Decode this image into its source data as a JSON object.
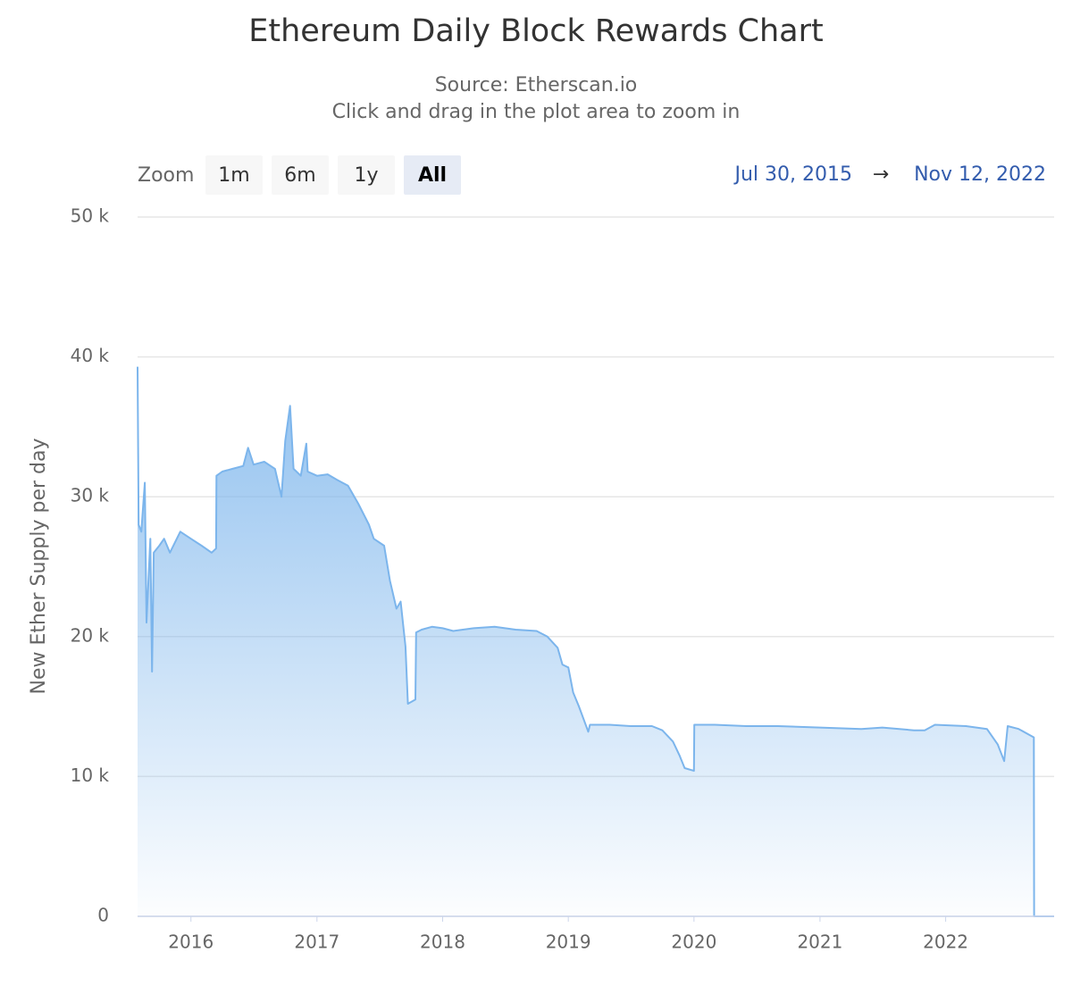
{
  "chart_data": {
    "type": "area",
    "title": "Ethereum Daily Block Rewards Chart",
    "subtitle": [
      "Source: Etherscan.io",
      "Click and drag in the plot area to zoom in"
    ],
    "range_selector": {
      "label": "Zoom",
      "buttons": [
        "1m",
        "6m",
        "1y",
        "All"
      ],
      "selected": 3,
      "from": "Jul 30, 2015",
      "arrow": "→",
      "to": "Nov 12, 2022"
    },
    "y_axis_title": "New Ether Supply per day",
    "color": "#7cb5ec",
    "grid": true,
    "xlim": [
      "2015-07-30",
      "2022-11-12"
    ],
    "xticks": [
      {
        "value": "2016-01-01",
        "label": "2016"
      },
      {
        "value": "2017-01-01",
        "label": "2017"
      },
      {
        "value": "2018-01-01",
        "label": "2018"
      },
      {
        "value": "2019-01-01",
        "label": "2019"
      },
      {
        "value": "2020-01-01",
        "label": "2020"
      },
      {
        "value": "2021-01-01",
        "label": "2021"
      },
      {
        "value": "2022-01-01",
        "label": "2022"
      }
    ],
    "ylim": [
      0,
      50000
    ],
    "yticks": [
      {
        "value": 0,
        "label": "0"
      },
      {
        "value": 10000,
        "label": "10 k"
      },
      {
        "value": 20000,
        "label": "20 k"
      },
      {
        "value": 30000,
        "label": "30 k"
      },
      {
        "value": 40000,
        "label": "40 k"
      },
      {
        "value": 50000,
        "label": "50 k"
      }
    ],
    "x": [
      "2015-07-30",
      "2015-08-02",
      "2015-08-10",
      "2015-08-20",
      "2015-08-25",
      "2015-09-05",
      "2015-09-10",
      "2015-09-15",
      "2015-10-01",
      "2015-10-15",
      "2015-11-01",
      "2015-12-01",
      "2016-01-01",
      "2016-02-01",
      "2016-03-01",
      "2016-03-14",
      "2016-03-15",
      "2016-04-01",
      "2016-05-01",
      "2016-06-01",
      "2016-06-15",
      "2016-07-01",
      "2016-08-01",
      "2016-09-01",
      "2016-09-20",
      "2016-10-01",
      "2016-10-15",
      "2016-10-25",
      "2016-11-15",
      "2016-12-01",
      "2016-12-05",
      "2017-01-01",
      "2017-02-01",
      "2017-03-01",
      "2017-04-01",
      "2017-05-01",
      "2017-06-01",
      "2017-06-15",
      "2017-07-15",
      "2017-08-01",
      "2017-08-20",
      "2017-09-01",
      "2017-09-15",
      "2017-09-22",
      "2017-10-14",
      "2017-10-16",
      "2017-11-01",
      "2017-12-01",
      "2018-01-01",
      "2018-02-01",
      "2018-04-01",
      "2018-06-01",
      "2018-08-01",
      "2018-10-01",
      "2018-11-01",
      "2018-12-01",
      "2018-12-15",
      "2019-01-01",
      "2019-01-15",
      "2019-02-01",
      "2019-02-28",
      "2019-03-05",
      "2019-05-01",
      "2019-07-01",
      "2019-09-01",
      "2019-10-01",
      "2019-11-01",
      "2019-11-20",
      "2019-12-05",
      "2020-01-01",
      "2020-01-02",
      "2020-03-01",
      "2020-06-01",
      "2020-09-01",
      "2021-01-01",
      "2021-05-01",
      "2021-07-01",
      "2021-10-01",
      "2021-11-01",
      "2021-12-01",
      "2022-03-01",
      "2022-05-01",
      "2022-06-01",
      "2022-06-20",
      "2022-06-30",
      "2022-08-01",
      "2022-09-14",
      "2022-09-15",
      "2022-11-12"
    ],
    "values": [
      39300,
      28000,
      27500,
      31000,
      21000,
      27000,
      17500,
      26000,
      26500,
      27000,
      26000,
      27500,
      27000,
      26500,
      26000,
      26300,
      31500,
      31800,
      32000,
      32200,
      33500,
      32300,
      32500,
      32000,
      30000,
      34000,
      36500,
      32000,
      31500,
      33800,
      31800,
      31500,
      31600,
      31200,
      30800,
      29500,
      28000,
      27000,
      26500,
      24000,
      22000,
      22500,
      19300,
      15200,
      15500,
      20300,
      20500,
      20700,
      20600,
      20400,
      20600,
      20700,
      20500,
      20400,
      20000,
      19200,
      18000,
      17800,
      16000,
      15000,
      13200,
      13700,
      13700,
      13600,
      13600,
      13300,
      12500,
      11500,
      10600,
      10400,
      13700,
      13700,
      13600,
      13600,
      13500,
      13400,
      13500,
      13300,
      13300,
      13700,
      13600,
      13400,
      12300,
      11100,
      13600,
      13400,
      12800,
      0,
      0
    ]
  }
}
